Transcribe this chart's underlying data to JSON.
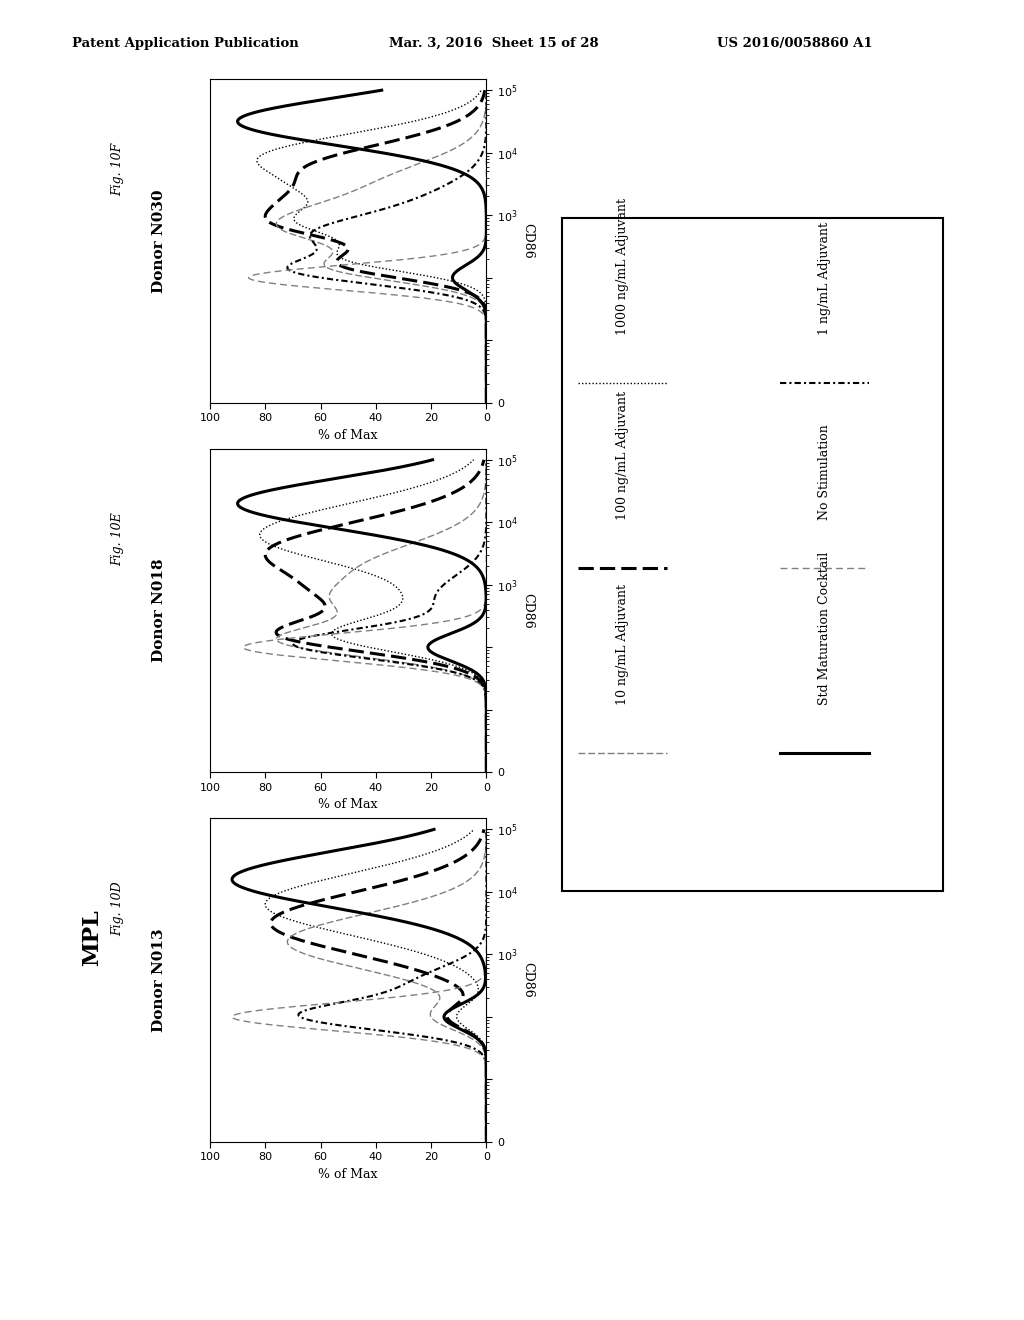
{
  "header_left": "Patent Application Publication",
  "header_mid": "Mar. 3, 2016  Sheet 15 of 28",
  "header_right": "US 2016/0058860 A1",
  "bottom_label": "MPL",
  "fig_labels": [
    "Fig. 10D",
    "Fig. 10E",
    "Fig. 10F"
  ],
  "donor_labels": [
    "Donor N013",
    "Donor N018",
    "Donor N030"
  ],
  "xaxis_label": "% of Max",
  "yaxis_label": "CD86",
  "background_color": "white",
  "legend_left_col": [
    {
      "label": "1000 ng/mL Adjuvant",
      "ls": "dotted_fine",
      "lw": 1.0,
      "color": "black"
    },
    {
      "label": "100 ng/mL Adjuvant",
      "ls": "dashed_thick",
      "lw": 2.2,
      "color": "black"
    },
    {
      "label": "10 ng/mL Adjuvant",
      "ls": "dashdot_gray",
      "lw": 1.2,
      "color": "gray"
    }
  ],
  "legend_right_col": [
    {
      "label": "1 ng/mL Adjuvant",
      "ls": "dashdot",
      "lw": 1.5,
      "color": "black"
    },
    {
      "label": "No Stimulation",
      "ls": "dashed_gray",
      "lw": 1.2,
      "color": "gray"
    },
    {
      "label": "Std Maturation Cocktail",
      "ls": "solid",
      "lw": 2.2,
      "color": "black"
    }
  ]
}
